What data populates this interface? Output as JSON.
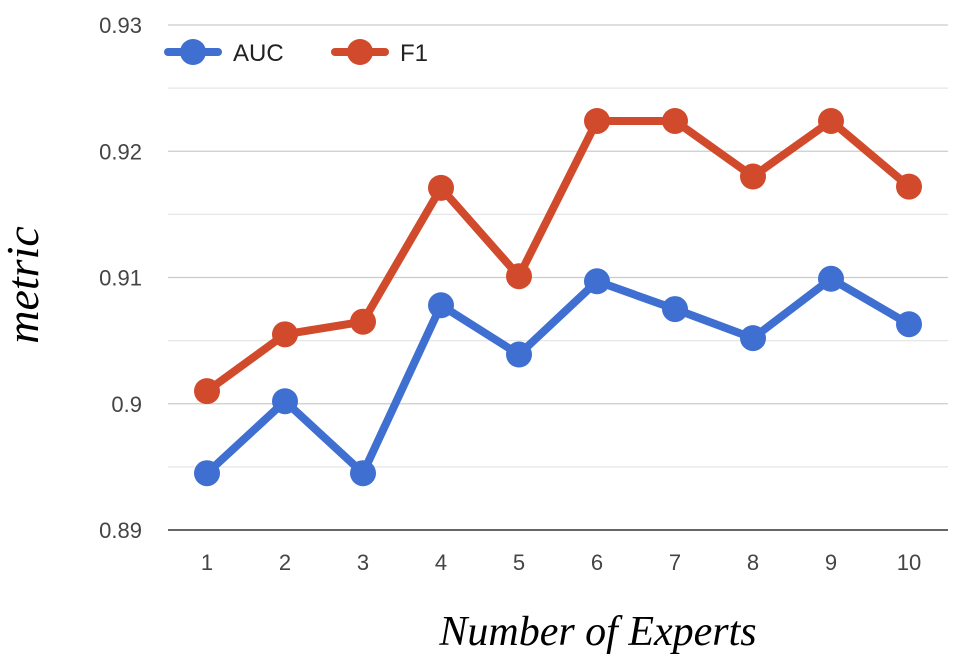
{
  "chart_data": {
    "type": "line",
    "xlabel": "Number of Experts",
    "ylabel": "metric",
    "categories": [
      "1",
      "2",
      "3",
      "4",
      "5",
      "6",
      "7",
      "8",
      "9",
      "10"
    ],
    "series": [
      {
        "name": "AUC",
        "color": "#3f6fd0",
        "values": [
          0.8945,
          0.9002,
          0.8945,
          0.9078,
          0.9039,
          0.9097,
          0.9075,
          0.9052,
          0.9099,
          0.9063
        ]
      },
      {
        "name": "F1",
        "color": "#d24a2c",
        "values": [
          0.901,
          0.9055,
          0.9065,
          0.9171,
          0.9101,
          0.9224,
          0.9224,
          0.918,
          0.9224,
          0.9172
        ]
      }
    ],
    "ylim": [
      0.89,
      0.93
    ],
    "yticks": [
      "0.89",
      "0.9",
      "0.91",
      "0.92",
      "0.93"
    ],
    "grid": true,
    "legend": "top-left"
  }
}
